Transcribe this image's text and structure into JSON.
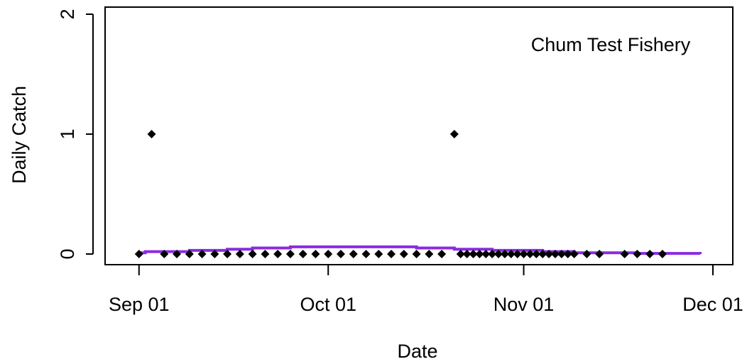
{
  "chart_data": {
    "type": "scatter",
    "annotation": "Chum Test Fishery",
    "xlabel": "Date",
    "ylabel": "Daily Catch",
    "x_ticks": [
      "Sep 01",
      "Oct 01",
      "Nov 01",
      "Dec 01"
    ],
    "x_tick_dates": [
      "2000-09-01",
      "2000-10-01",
      "2000-11-01",
      "2000-12-01"
    ],
    "xlim": [
      "2000-08-30",
      "2000-12-01"
    ],
    "y_ticks": [
      "0",
      "1",
      "2"
    ],
    "y_tick_values": [
      0,
      1,
      2
    ],
    "ylim": [
      -0.09,
      2.0
    ],
    "grid": false,
    "series": [
      {
        "type": "scatter",
        "color": "#000000",
        "marker": "diamond",
        "points": [
          {
            "x": "2000-09-01",
            "y": 0
          },
          {
            "x": "2000-09-03",
            "y": 1
          },
          {
            "x": "2000-09-05",
            "y": 0
          },
          {
            "x": "2000-09-07",
            "y": 0
          },
          {
            "x": "2000-09-09",
            "y": 0
          },
          {
            "x": "2000-09-11",
            "y": 0
          },
          {
            "x": "2000-09-13",
            "y": 0
          },
          {
            "x": "2000-09-15",
            "y": 0
          },
          {
            "x": "2000-09-17",
            "y": 0
          },
          {
            "x": "2000-09-19",
            "y": 0
          },
          {
            "x": "2000-09-21",
            "y": 0
          },
          {
            "x": "2000-09-23",
            "y": 0
          },
          {
            "x": "2000-09-25",
            "y": 0
          },
          {
            "x": "2000-09-27",
            "y": 0
          },
          {
            "x": "2000-09-29",
            "y": 0
          },
          {
            "x": "2000-10-01",
            "y": 0
          },
          {
            "x": "2000-10-03",
            "y": 0
          },
          {
            "x": "2000-10-05",
            "y": 0
          },
          {
            "x": "2000-10-07",
            "y": 0
          },
          {
            "x": "2000-10-09",
            "y": 0
          },
          {
            "x": "2000-10-11",
            "y": 0
          },
          {
            "x": "2000-10-13",
            "y": 0
          },
          {
            "x": "2000-10-15",
            "y": 0
          },
          {
            "x": "2000-10-17",
            "y": 0
          },
          {
            "x": "2000-10-19",
            "y": 0
          },
          {
            "x": "2000-10-21",
            "y": 1
          },
          {
            "x": "2000-10-22",
            "y": 0
          },
          {
            "x": "2000-10-23",
            "y": 0
          },
          {
            "x": "2000-10-24",
            "y": 0
          },
          {
            "x": "2000-10-25",
            "y": 0
          },
          {
            "x": "2000-10-26",
            "y": 0
          },
          {
            "x": "2000-10-27",
            "y": 0
          },
          {
            "x": "2000-10-28",
            "y": 0
          },
          {
            "x": "2000-10-29",
            "y": 0
          },
          {
            "x": "2000-10-30",
            "y": 0
          },
          {
            "x": "2000-10-31",
            "y": 0
          },
          {
            "x": "2000-11-01",
            "y": 0
          },
          {
            "x": "2000-11-02",
            "y": 0
          },
          {
            "x": "2000-11-03",
            "y": 0
          },
          {
            "x": "2000-11-04",
            "y": 0
          },
          {
            "x": "2000-11-05",
            "y": 0
          },
          {
            "x": "2000-11-06",
            "y": 0
          },
          {
            "x": "2000-11-07",
            "y": 0
          },
          {
            "x": "2000-11-08",
            "y": 0
          },
          {
            "x": "2000-11-09",
            "y": 0
          },
          {
            "x": "2000-11-11",
            "y": 0
          },
          {
            "x": "2000-11-13",
            "y": 0
          },
          {
            "x": "2000-11-17",
            "y": 0
          },
          {
            "x": "2000-11-19",
            "y": 0
          },
          {
            "x": "2000-11-21",
            "y": 0
          },
          {
            "x": "2000-11-23",
            "y": 0
          }
        ]
      },
      {
        "type": "step",
        "color": "#8a2be2",
        "points": [
          {
            "x": "2000-09-01",
            "y": 0.01
          },
          {
            "x": "2000-09-02",
            "y": 0.02
          },
          {
            "x": "2000-09-09",
            "y": 0.03
          },
          {
            "x": "2000-09-15",
            "y": 0.04
          },
          {
            "x": "2000-09-19",
            "y": 0.05
          },
          {
            "x": "2000-09-25",
            "y": 0.06
          },
          {
            "x": "2000-10-15",
            "y": 0.05
          },
          {
            "x": "2000-10-21",
            "y": 0.04
          },
          {
            "x": "2000-10-27",
            "y": 0.03
          },
          {
            "x": "2000-11-04",
            "y": 0.02
          },
          {
            "x": "2000-11-09",
            "y": 0.01
          },
          {
            "x": "2000-11-19",
            "y": 0.005
          },
          {
            "x": "2000-11-29",
            "y": 0.0
          }
        ]
      }
    ]
  }
}
